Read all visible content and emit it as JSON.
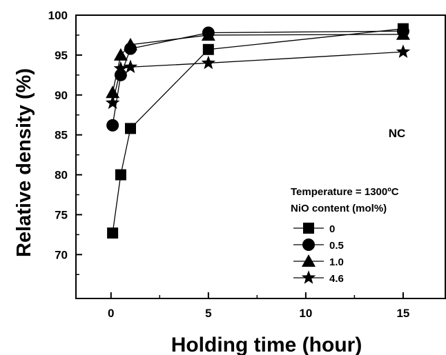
{
  "chart_data": {
    "type": "line",
    "title": "",
    "xlabel": "Holding time (hour)",
    "ylabel": "Relative density (%)",
    "xlim": [
      -1.8,
      17.2
    ],
    "ylim": [
      64.5,
      100
    ],
    "xticks": [
      0,
      5,
      10,
      15
    ],
    "yticks": [
      70,
      75,
      80,
      85,
      90,
      95,
      100
    ],
    "annotation": "NC",
    "legend_title_lines": [
      "Temperature = 1300ºC",
      "NiO content (mol%)"
    ],
    "legend_position": "lower-right",
    "series": [
      {
        "name": "0",
        "marker": "square",
        "x": [
          0.083,
          0.5,
          1,
          5,
          15
        ],
        "y": [
          72.7,
          80.0,
          85.8,
          95.7,
          98.3
        ]
      },
      {
        "name": "0.5",
        "marker": "circle",
        "x": [
          0.083,
          0.5,
          1,
          5,
          15
        ],
        "y": [
          86.2,
          92.5,
          95.8,
          97.8,
          98.0
        ]
      },
      {
        "name": "1.0",
        "marker": "triangle",
        "x": [
          0.083,
          0.5,
          1,
          5,
          15
        ],
        "y": [
          90.3,
          95.0,
          96.3,
          97.5,
          97.6
        ]
      },
      {
        "name": "4.6",
        "marker": "star",
        "x": [
          0.083,
          0.5,
          1,
          5,
          15
        ],
        "y": [
          89.0,
          93.3,
          93.5,
          94.0,
          95.4
        ]
      }
    ]
  }
}
